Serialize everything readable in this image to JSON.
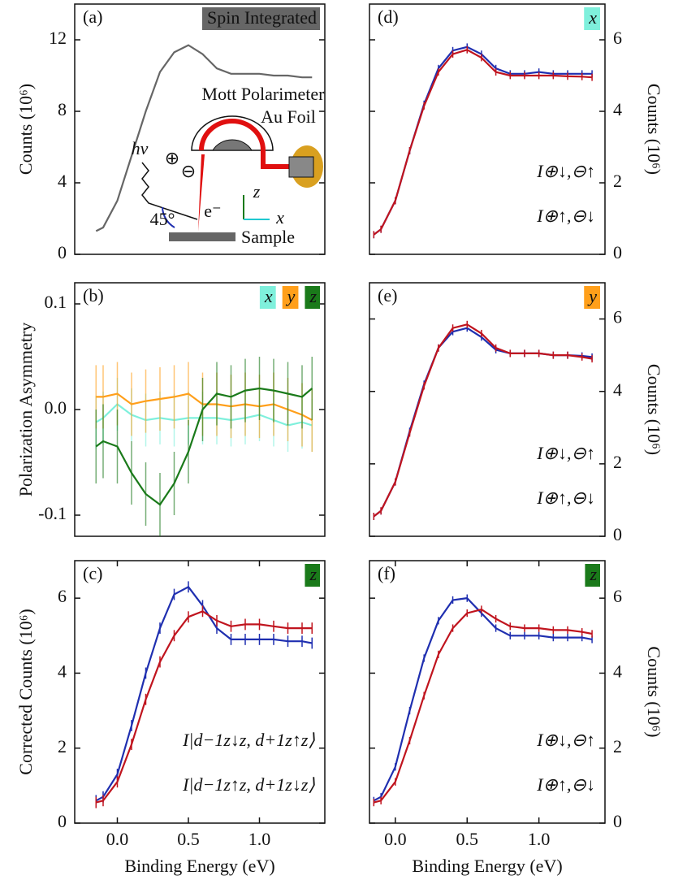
{
  "chart_data": [
    {
      "type": "line",
      "panel_label": "(a)",
      "ylabel": "Counts (10⁶)",
      "xlim": [
        -0.3,
        1.46
      ],
      "ylim": [
        0,
        14
      ],
      "yticks": [
        0,
        4,
        8,
        12
      ],
      "tags": [
        {
          "text": "Spin Integrated",
          "color": "#666666"
        }
      ],
      "x": [
        -0.15,
        -0.1,
        0,
        0.1,
        0.2,
        0.3,
        0.4,
        0.5,
        0.6,
        0.7,
        0.8,
        0.9,
        1.0,
        1.1,
        1.2,
        1.3,
        1.37
      ],
      "series": [
        {
          "color": "#666666",
          "values": [
            1.3,
            1.5,
            3.0,
            5.5,
            8.0,
            10.2,
            11.3,
            11.7,
            11.2,
            10.4,
            10.1,
            10.1,
            10.1,
            10.0,
            10.0,
            9.9,
            9.9
          ]
        }
      ],
      "annotations": [
        "Mott Polarimeter",
        "Au Foil",
        "hv",
        "⊕",
        "⊖",
        "e⁻",
        "45°",
        "Sample",
        "z",
        "x"
      ]
    },
    {
      "type": "line",
      "panel_label": "(b)",
      "ylabel": "Polarization Asymmetry",
      "xlim": [
        -0.3,
        1.46
      ],
      "ylim": [
        -0.12,
        0.12
      ],
      "yticks": [
        -0.1,
        {
          "value": 0,
          "label": "0.0"
        },
        0.1
      ],
      "tags": [
        {
          "text": "x",
          "color": "#7ff0dc"
        },
        {
          "text": "y",
          "color": "#ff9f1a"
        },
        {
          "text": "z",
          "color": "#1a7a1a"
        }
      ],
      "x": [
        -0.15,
        -0.1,
        0,
        0.1,
        0.2,
        0.3,
        0.4,
        0.5,
        0.6,
        0.7,
        0.8,
        0.9,
        1.0,
        1.1,
        1.2,
        1.3,
        1.37
      ],
      "series": [
        {
          "color": "#7ff0dc",
          "values": [
            -0.012,
            -0.008,
            0.005,
            -0.005,
            -0.01,
            -0.008,
            -0.01,
            -0.008,
            -0.008,
            -0.008,
            -0.01,
            -0.008,
            -0.005,
            -0.01,
            -0.015,
            -0.012,
            -0.015
          ],
          "errors": [
            0.025,
            0.025,
            0.025,
            0.025,
            0.025,
            0.025,
            0.025,
            0.025,
            0.025,
            0.025,
            0.025,
            0.025,
            0.025,
            0.025,
            0.025,
            0.025,
            0.025
          ]
        },
        {
          "color": "#ff9f1a",
          "values": [
            0.012,
            0.012,
            0.015,
            0.005,
            0.008,
            0.01,
            0.012,
            0.015,
            0.005,
            0.005,
            0.003,
            0.005,
            0.003,
            0.005,
            0,
            -0.005,
            -0.01
          ],
          "errors": [
            0.03,
            0.03,
            0.03,
            0.03,
            0.03,
            0.03,
            0.03,
            0.03,
            0.03,
            0.03,
            0.03,
            0.03,
            0.03,
            0.03,
            0.03,
            0.03,
            0.03
          ]
        },
        {
          "color": "#1a7a1a",
          "values": [
            -0.035,
            -0.03,
            -0.035,
            -0.06,
            -0.08,
            -0.09,
            -0.07,
            -0.04,
            0.0,
            0.015,
            0.012,
            0.018,
            0.02,
            0.018,
            0.015,
            0.012,
            0.02
          ],
          "errors": [
            0.035,
            0.035,
            0.035,
            0.03,
            0.03,
            0.03,
            0.03,
            0.03,
            0.03,
            0.03,
            0.03,
            0.03,
            0.03,
            0.03,
            0.03,
            0.03,
            0.03
          ]
        }
      ]
    },
    {
      "type": "line",
      "panel_label": "(c)",
      "ylabel": "Corrected Counts (10⁶)",
      "xlabel": "Binding Energy (eV)",
      "xlim": [
        -0.3,
        1.46
      ],
      "ylim": [
        0,
        7
      ],
      "yticks": [
        0,
        2,
        4,
        6
      ],
      "xticks": [
        {
          "value": 0,
          "label": "0.0"
        },
        0.5,
        {
          "value": 1,
          "label": "1.0"
        }
      ],
      "tags": [
        {
          "text": "z",
          "color": "#1a7a1a"
        }
      ],
      "x": [
        -0.15,
        -0.1,
        0,
        0.1,
        0.2,
        0.3,
        0.4,
        0.5,
        0.6,
        0.7,
        0.8,
        0.9,
        1.0,
        1.1,
        1.2,
        1.3,
        1.37
      ],
      "series": [
        {
          "name": "I|d−1z↓z, d+1z↑z⟩",
          "color": "#1f2fb0",
          "error": 0.15,
          "values": [
            0.6,
            0.7,
            1.3,
            2.6,
            4.0,
            5.2,
            6.1,
            6.3,
            5.8,
            5.2,
            4.9,
            4.9,
            4.9,
            4.9,
            4.85,
            4.85,
            4.8
          ]
        },
        {
          "name": "I|d−1z↑z, d+1z↓z⟩",
          "color": "#c0141e",
          "error": 0.15,
          "values": [
            0.55,
            0.6,
            1.1,
            2.1,
            3.3,
            4.3,
            5.0,
            5.5,
            5.65,
            5.4,
            5.25,
            5.3,
            5.3,
            5.25,
            5.2,
            5.2,
            5.2
          ]
        }
      ]
    },
    {
      "type": "line",
      "panel_label": "(d)",
      "ylabel": "Counts (10⁶)",
      "xlim": [
        -0.18,
        1.46
      ],
      "ylim": [
        0,
        7
      ],
      "yticks": [
        0,
        2,
        4,
        6
      ],
      "yaxis_side": "right",
      "tags": [
        {
          "text": "x",
          "color": "#7ff0dc"
        }
      ],
      "x": [
        -0.15,
        -0.1,
        0,
        0.1,
        0.2,
        0.3,
        0.4,
        0.5,
        0.6,
        0.7,
        0.8,
        0.9,
        1.0,
        1.1,
        1.2,
        1.3,
        1.37
      ],
      "series": [
        {
          "name": "I⊕↓,⊖↑",
          "color": "#1f2fb0",
          "error": 0.1,
          "values": [
            0.55,
            0.7,
            1.5,
            2.9,
            4.2,
            5.2,
            5.7,
            5.8,
            5.6,
            5.2,
            5.05,
            5.05,
            5.1,
            5.05,
            5.05,
            5.05,
            5.05
          ]
        },
        {
          "name": "I⊕↑,⊖↓",
          "color": "#c0141e",
          "error": 0.1,
          "values": [
            0.55,
            0.7,
            1.5,
            2.9,
            4.15,
            5.1,
            5.6,
            5.72,
            5.5,
            5.1,
            5.0,
            5.0,
            5.0,
            5.0,
            4.98,
            4.97,
            4.95
          ]
        }
      ]
    },
    {
      "type": "line",
      "panel_label": "(e)",
      "ylabel": "Counts (10⁶)",
      "xlim": [
        -0.18,
        1.46
      ],
      "ylim": [
        0,
        7
      ],
      "yticks": [
        0,
        2,
        4,
        6
      ],
      "yaxis_side": "right",
      "tags": [
        {
          "text": "y",
          "color": "#ff9f1a"
        }
      ],
      "x": [
        -0.15,
        -0.1,
        0,
        0.1,
        0.2,
        0.3,
        0.4,
        0.5,
        0.6,
        0.7,
        0.8,
        0.9,
        1.0,
        1.1,
        1.2,
        1.3,
        1.37
      ],
      "series": [
        {
          "name": "I⊕↓,⊖↑",
          "color": "#1f2fb0",
          "error": 0.1,
          "values": [
            0.55,
            0.7,
            1.5,
            2.9,
            4.2,
            5.2,
            5.65,
            5.75,
            5.5,
            5.15,
            5.05,
            5.05,
            5.05,
            5.0,
            5.0,
            4.98,
            4.95
          ]
        },
        {
          "name": "I⊕↑,⊖↓",
          "color": "#c0141e",
          "error": 0.1,
          "values": [
            0.55,
            0.7,
            1.5,
            2.85,
            4.15,
            5.2,
            5.75,
            5.85,
            5.6,
            5.2,
            5.05,
            5.05,
            5.05,
            5.0,
            5.0,
            4.95,
            4.9
          ]
        }
      ]
    },
    {
      "type": "line",
      "panel_label": "(f)",
      "ylabel": "Counts (10⁶)",
      "xlabel": "Binding Energy (eV)",
      "xlim": [
        -0.18,
        1.46
      ],
      "ylim": [
        0,
        7
      ],
      "yticks": [
        0,
        2,
        4,
        6
      ],
      "yaxis_side": "right",
      "xticks": [
        {
          "value": 0,
          "label": "0.0"
        },
        0.5,
        {
          "value": 1,
          "label": "1.0"
        }
      ],
      "tags": [
        {
          "text": "z",
          "color": "#1a7a1a"
        }
      ],
      "x": [
        -0.15,
        -0.1,
        0,
        0.1,
        0.2,
        0.3,
        0.4,
        0.5,
        0.6,
        0.7,
        0.8,
        0.9,
        1.0,
        1.1,
        1.2,
        1.3,
        1.37
      ],
      "series": [
        {
          "name": "I⊕↓,⊖↑",
          "color": "#1f2fb0",
          "error": 0.1,
          "values": [
            0.6,
            0.7,
            1.5,
            3.0,
            4.4,
            5.4,
            5.95,
            6.0,
            5.6,
            5.2,
            5.0,
            5.0,
            5.0,
            4.95,
            4.95,
            4.95,
            4.9
          ]
        },
        {
          "name": "I⊕↑,⊖↓",
          "color": "#c0141e",
          "error": 0.1,
          "values": [
            0.55,
            0.6,
            1.1,
            2.2,
            3.4,
            4.5,
            5.2,
            5.6,
            5.7,
            5.45,
            5.25,
            5.2,
            5.2,
            5.15,
            5.15,
            5.1,
            5.05
          ]
        }
      ]
    }
  ]
}
